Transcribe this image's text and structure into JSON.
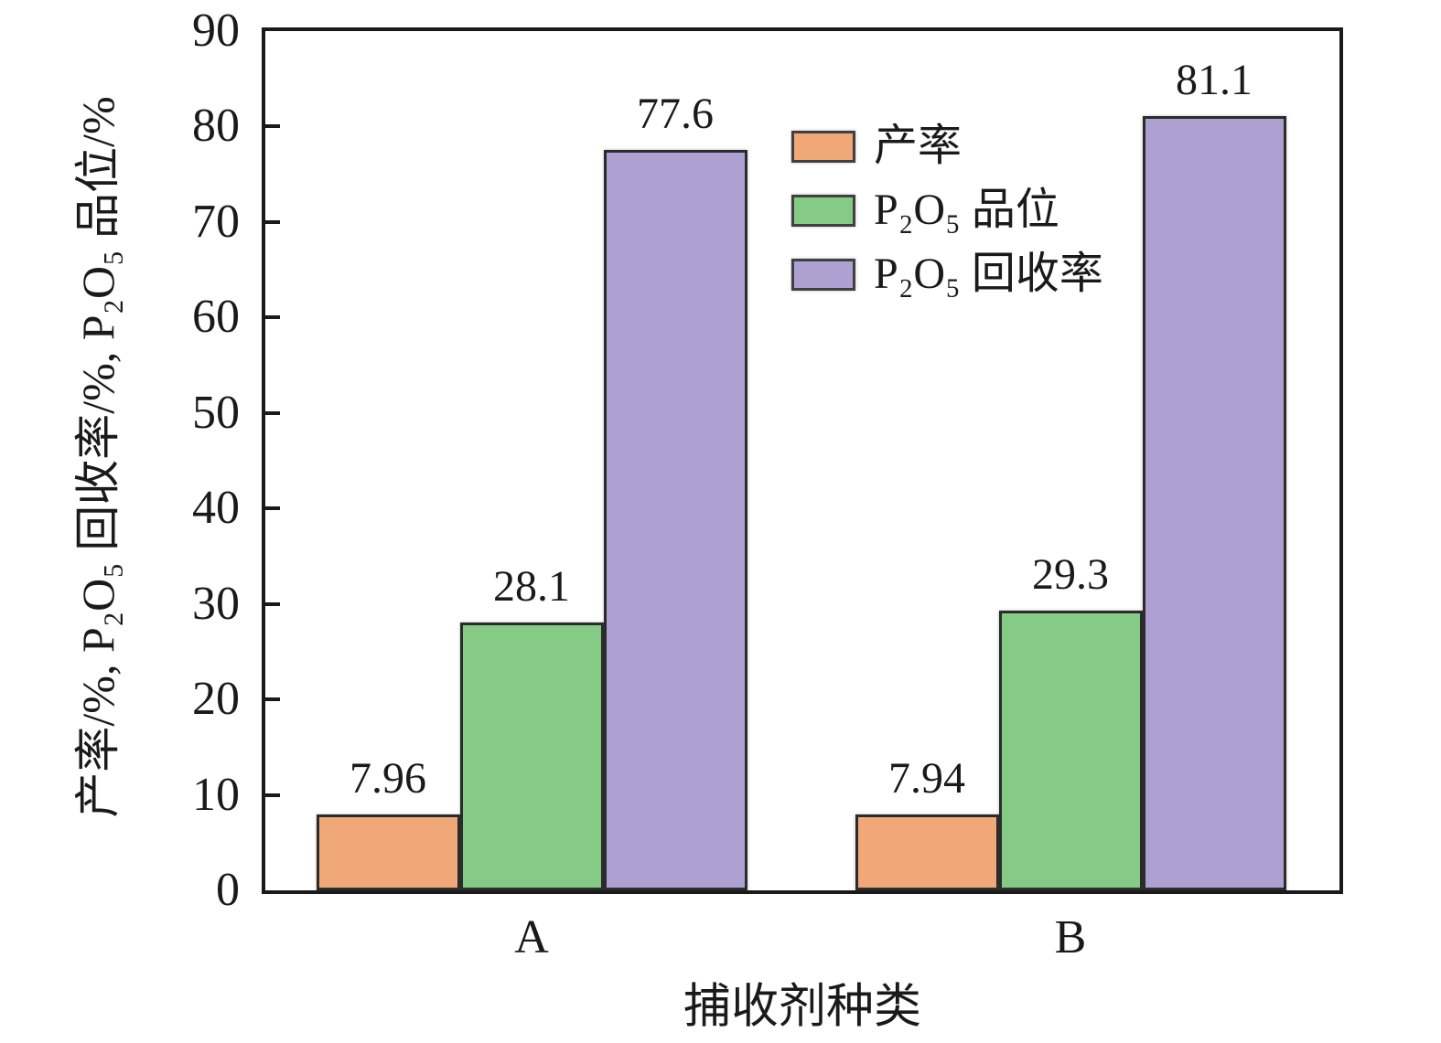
{
  "chart_data": {
    "type": "bar",
    "title": "",
    "xlabel": "捕收剂种类",
    "ylabel": "产率/%, P₂O₅ 回收率/%, P₂O₅ 品位/%",
    "categories": [
      "A",
      "B"
    ],
    "series": [
      {
        "name": "产率",
        "color": "#F0A878",
        "values": [
          7.96,
          7.94
        ],
        "labels": [
          "7.96",
          "7.94"
        ]
      },
      {
        "name": "P₂O₅ 品位",
        "color": "#85CA85",
        "values": [
          28.1,
          29.3
        ],
        "labels": [
          "28.1",
          "29.3"
        ]
      },
      {
        "name": "P₂O₅ 回收率",
        "color": "#AFA0D2",
        "values": [
          77.6,
          81.1
        ],
        "labels": [
          "77.6",
          "81.1"
        ]
      }
    ],
    "ylim": [
      0,
      90
    ],
    "yticks": [
      0,
      10,
      20,
      30,
      40,
      50,
      60,
      70,
      80,
      90
    ],
    "grid": false,
    "frame": "full-box",
    "legend_position": "inside top-center",
    "value_labels": true,
    "bar_border_color": "#2b2b2b",
    "axis_color": "#1a1a1a"
  }
}
